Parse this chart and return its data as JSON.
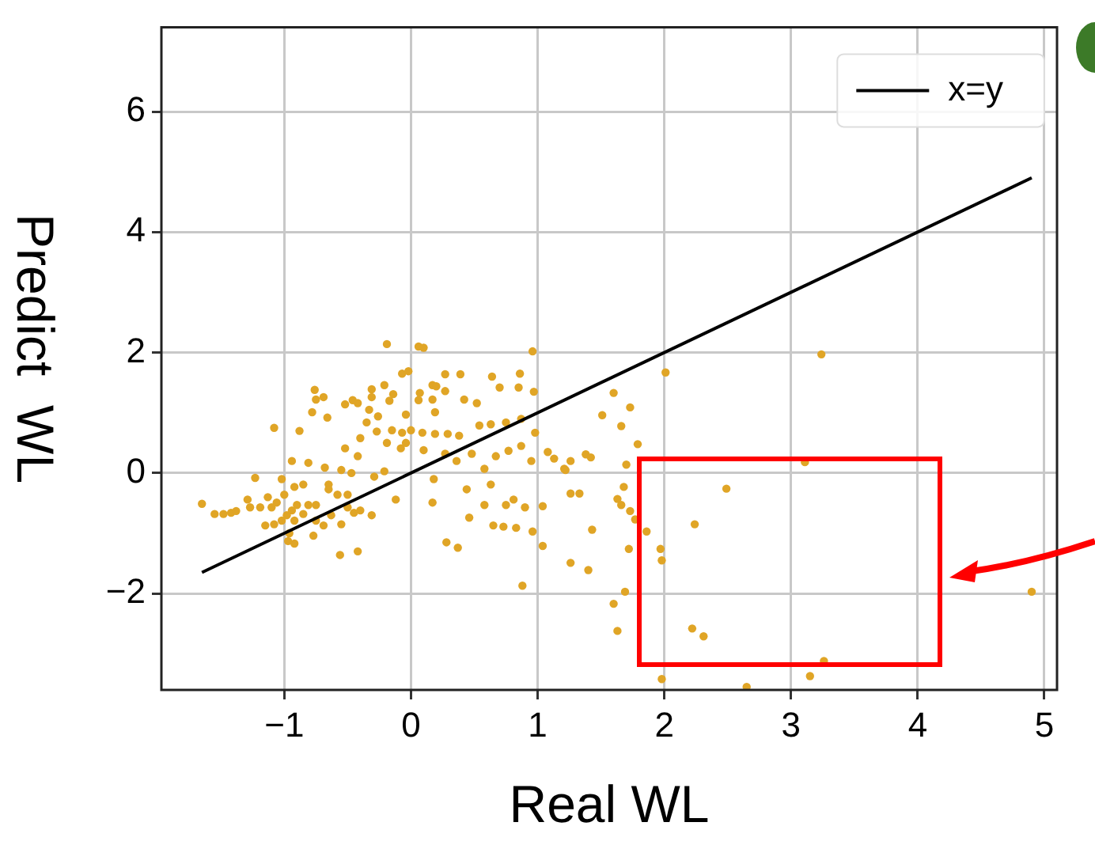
{
  "chart_data": {
    "type": "scatter",
    "xlabel": "Real WL",
    "ylabel": "Predict  WL",
    "xlim": [
      -1.97,
      5.1
    ],
    "ylim": [
      -3.6,
      7.4
    ],
    "xticks": [
      {
        "value": -1,
        "label": "−1"
      },
      0,
      1,
      2,
      3,
      4,
      5
    ],
    "yticks": [
      {
        "value": -2,
        "label": "−2"
      },
      0,
      2,
      4,
      6
    ],
    "grid": true,
    "legend": "top right",
    "series": [
      {
        "type": "scatter",
        "marker": "circle",
        "color": "#e0a526",
        "x": [
          -0.19,
          0.06,
          0.1,
          0.96,
          -0.07,
          -0.02,
          0.27,
          0.39,
          0.64,
          0.86,
          -0.76,
          -0.31,
          -0.21,
          -0.14,
          0.17,
          0.2,
          0.07,
          0.27,
          0.7,
          0.85,
          0.97,
          -0.75,
          -0.69,
          -0.52,
          -0.46,
          -0.42,
          -0.17,
          -0.31,
          0.06,
          0.17,
          0.42,
          0.52,
          -0.78,
          -0.66,
          -0.33,
          -0.26,
          -0.04,
          0.19,
          -1.08,
          -0.88,
          -0.35,
          -0.27,
          -0.15,
          -0.07,
          0,
          0.09,
          0.19,
          0.29,
          0.38,
          0.54,
          0.63,
          0.75,
          0.87,
          0.98,
          -0.4,
          -0.19,
          -0.08,
          0.1,
          -0.04,
          -0.52,
          -0.42,
          -0.94,
          -0.81,
          -0.68,
          -0.55,
          -0.47,
          -0.29,
          -0.21,
          0.27,
          0.36,
          0.48,
          0.58,
          0.67,
          0.77,
          0.87,
          0.95,
          1.08,
          1.13,
          1.21,
          0.18,
          0.44,
          0.63,
          0.58,
          0.75,
          0.81,
          0.9,
          1.04,
          0.46,
          0.17,
          -0.12,
          -0.31,
          -0.55,
          -0.4,
          0.65,
          0.73,
          0.83,
          0.96,
          1.04,
          0.28,
          0.37,
          -0.56,
          -0.42,
          0.88,
          -1.65,
          -1.55,
          -1.48,
          -1.42,
          -1.38,
          -1.29,
          -1.27,
          -1.23,
          -1.19,
          -1.13,
          -1.1,
          -1.06,
          -1.02,
          -1,
          -1.15,
          -1.08,
          -1.02,
          -0.98,
          -0.94,
          -0.92,
          -0.9,
          -0.85,
          -0.81,
          -0.96,
          -0.92,
          -0.97,
          -0.77,
          -0.75,
          -0.69,
          -0.92,
          -0.85,
          -0.65,
          -0.65,
          -0.58,
          -0.5,
          -0.5,
          -0.45,
          -0.75,
          -0.63,
          3.24,
          2.01,
          1.6,
          1.73,
          1.51,
          1.66,
          1.79,
          1.26,
          1.22,
          1.38,
          1.42,
          1.7,
          3.11,
          2.49,
          1.68,
          1.26,
          1.33,
          1.63,
          1.66,
          1.73,
          1.77,
          1.86,
          2.24,
          1.43,
          1.72,
          1.97,
          1.98,
          1.26,
          1.4,
          1.69,
          1.6,
          1.63,
          2.22,
          2.31,
          4.9,
          3.26,
          1.98,
          3.15,
          2.65
        ],
        "values": [
          2.14,
          2.1,
          2.08,
          2.02,
          1.65,
          1.69,
          1.64,
          1.64,
          1.6,
          1.65,
          1.38,
          1.39,
          1.46,
          1.31,
          1.46,
          1.44,
          1.33,
          1.36,
          1.42,
          1.42,
          1.35,
          1.22,
          1.26,
          1.14,
          1.21,
          1.16,
          1.2,
          1.26,
          1.21,
          1.22,
          1.22,
          1.16,
          1.01,
          0.92,
          1.05,
          0.94,
          0.97,
          1.01,
          0.75,
          0.7,
          0.84,
          0.69,
          0.71,
          0.67,
          0.71,
          0.67,
          0.65,
          0.65,
          0.62,
          0.79,
          0.81,
          0.84,
          0.9,
          0.67,
          0.58,
          0.5,
          0.41,
          0.38,
          0.5,
          0.41,
          0.28,
          0.2,
          0.17,
          0.09,
          0.05,
          0,
          -0.06,
          0.03,
          0.32,
          0.2,
          0.32,
          0.07,
          0.28,
          0.37,
          0.45,
          0.2,
          0.35,
          0.24,
          0.07,
          -0.1,
          -0.27,
          -0.19,
          -0.53,
          -0.53,
          -0.44,
          -0.57,
          -0.55,
          -0.74,
          -0.49,
          -0.44,
          -0.7,
          -0.85,
          -0.62,
          -0.87,
          -0.89,
          -0.91,
          -0.97,
          -1.21,
          -1.15,
          -1.24,
          -1.36,
          -1.3,
          -1.87,
          -0.51,
          -0.68,
          -0.68,
          -0.66,
          -0.63,
          -0.44,
          -0.57,
          -0.08,
          -0.57,
          -0.4,
          -0.57,
          -0.49,
          -0.1,
          -0.36,
          -0.87,
          -0.85,
          -0.79,
          -0.7,
          -0.62,
          -0.79,
          -0.53,
          -0.68,
          -0.53,
          -1,
          -1.17,
          -1.13,
          -1.04,
          -0.79,
          -0.87,
          -0.23,
          -0.19,
          -0.19,
          -0.27,
          -0.36,
          -0.36,
          -0.57,
          -0.66,
          -0.53,
          -0.7,
          1.97,
          1.67,
          1.33,
          1.09,
          0.96,
          0.78,
          0.48,
          0.2,
          0.05,
          0.31,
          0.26,
          0.14,
          0.18,
          -0.26,
          -0.23,
          -0.34,
          -0.34,
          -0.43,
          -0.53,
          -0.63,
          -0.77,
          -0.97,
          -0.85,
          -0.94,
          -1.26,
          -1.26,
          -1.45,
          -1.49,
          -1.61,
          -1.97,
          -2.17,
          -2.62,
          -2.58,
          -2.71,
          -1.97,
          -3.12,
          -3.42,
          -3.37,
          -3.55
        ]
      },
      {
        "type": "line",
        "name": "x=y",
        "color": "#000000",
        "x": [
          -1.65,
          4.9
        ],
        "values": [
          -1.65,
          4.9
        ]
      }
    ]
  }
}
